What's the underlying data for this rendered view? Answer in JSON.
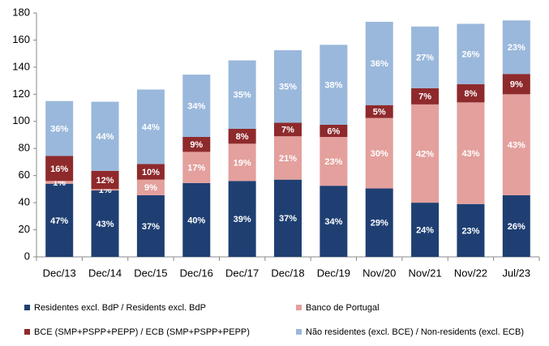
{
  "chart_data": {
    "type": "bar",
    "stacked": true,
    "categories": [
      "Dec/13",
      "Dec/14",
      "Dec/15",
      "Dec/16",
      "Dec/17",
      "Dec/18",
      "Dec/19",
      "Nov/20",
      "Nov/21",
      "Nov/22",
      "Jul/23"
    ],
    "series": [
      {
        "name": "Residentes excl. BdP / Residents excl. BdP",
        "color": "#1f3f73",
        "values": [
          54,
          49,
          45.5,
          54.5,
          56,
          57,
          52.5,
          50.5,
          40,
          39,
          45.5
        ],
        "labels": [
          "47%",
          "43%",
          "37%",
          "40%",
          "39%",
          "37%",
          "34%",
          "29%",
          "24%",
          "23%",
          "26%"
        ]
      },
      {
        "name": "Banco de Portugal",
        "color": "#e3a09d",
        "values": [
          2,
          1,
          11.5,
          23,
          27.5,
          32,
          36,
          52,
          72.5,
          75,
          74.5
        ],
        "labels": [
          "1%",
          "1%",
          "9%",
          "17%",
          "19%",
          "21%",
          "23%",
          "30%",
          "42%",
          "43%",
          "43%"
        ]
      },
      {
        "name": "BCE (SMP+PSPP+PEPP) / ECB (SMP+PSPP+PEPP)",
        "color": "#8e2a2c",
        "values": [
          18.5,
          13.5,
          11.5,
          11,
          11,
          10,
          9,
          9.5,
          12,
          13.5,
          15
        ],
        "labels": [
          "16%",
          "12%",
          "10%",
          "9%",
          "8%",
          "7%",
          "6%",
          "5%",
          "7%",
          "8%",
          "9%"
        ]
      },
      {
        "name": "Não residentes (excl. BCE) / Non-residents (excl. ECB)",
        "color": "#9ab8db",
        "values": [
          40.5,
          51,
          55,
          46,
          50.5,
          53.5,
          59,
          61.5,
          45.5,
          44.5,
          39.5
        ],
        "labels": [
          "36%",
          "44%",
          "44%",
          "34%",
          "35%",
          "35%",
          "38%",
          "36%",
          "27%",
          "26%",
          "23%"
        ]
      }
    ],
    "ylim": [
      0,
      180
    ],
    "yticks": [
      0,
      20,
      40,
      60,
      80,
      100,
      120,
      140,
      160,
      180
    ],
    "grid": false
  }
}
